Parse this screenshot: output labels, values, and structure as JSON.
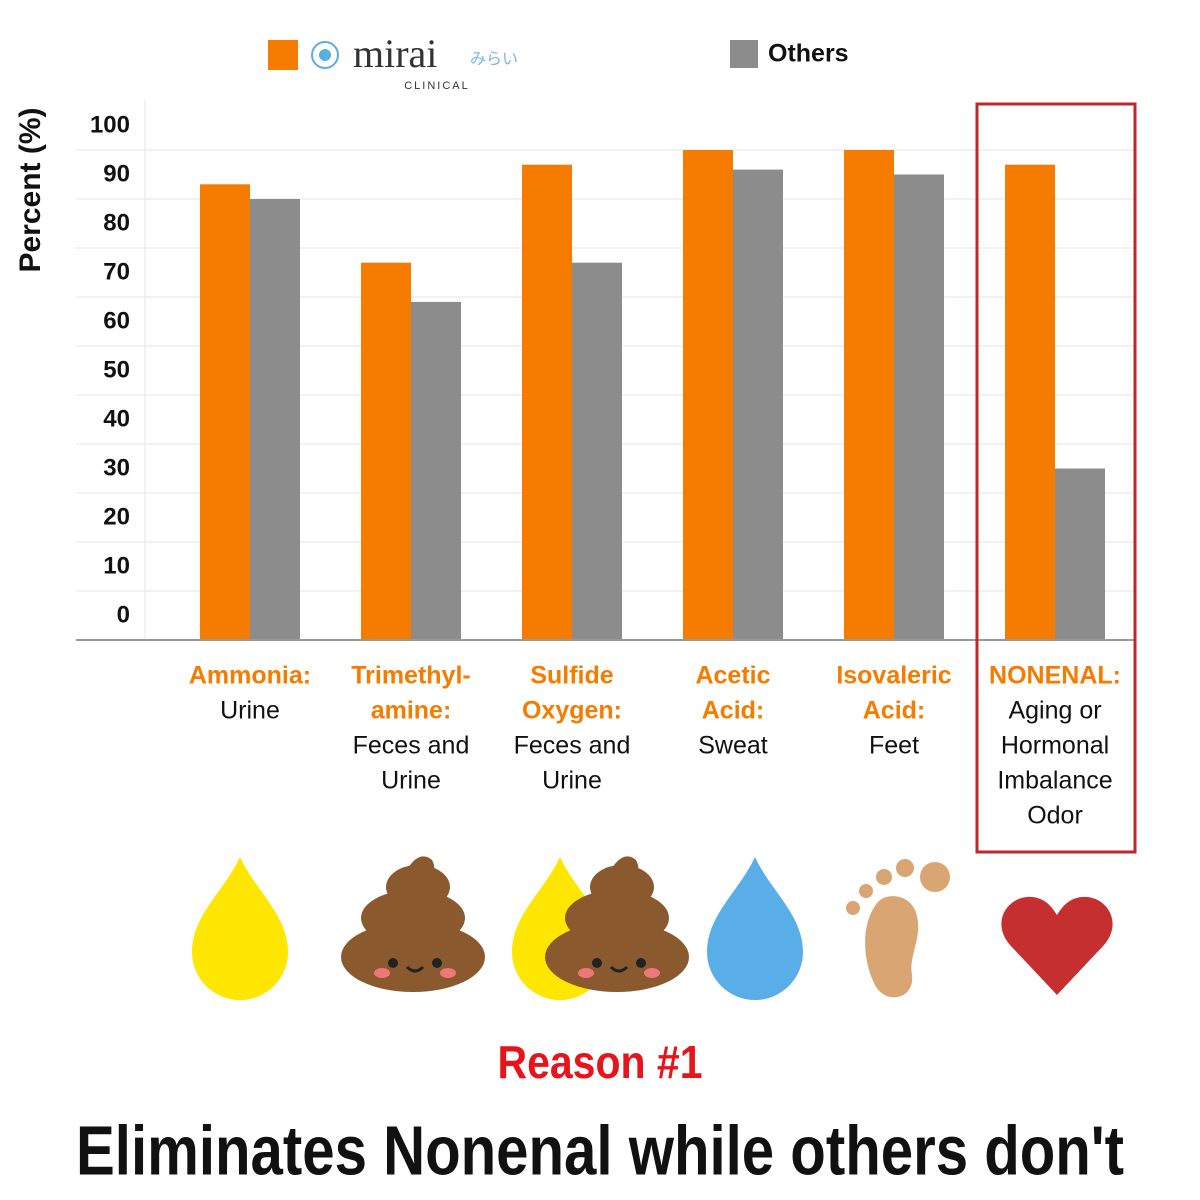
{
  "chart_data": {
    "type": "bar",
    "legend_logo": {
      "kana": "みらい",
      "subtitle": "CLINICAL"
    },
    "y_label": "Percent (%)",
    "category_labels": [
      {
        "compound": [
          "Ammonia:"
        ],
        "source": [
          "Urine"
        ]
      },
      {
        "compound": [
          "Trimethyl-",
          "amine:"
        ],
        "source": [
          "Feces and",
          "Urine"
        ]
      },
      {
        "compound": [
          "Sulfide",
          "Oxygen:"
        ],
        "source": [
          "Feces and",
          "Urine"
        ]
      },
      {
        "compound": [
          "Acetic",
          "Acid:"
        ],
        "source": [
          "Sweat"
        ]
      },
      {
        "compound": [
          "Isovaleric",
          "Acid:"
        ],
        "source": [
          "Feet"
        ]
      },
      {
        "compound": [
          "NONENAL:"
        ],
        "source": [
          "Aging or",
          "Hormonal",
          "Imbalance",
          "Odor"
        ]
      }
    ],
    "series": [
      {
        "name": "mirai",
        "color": "#f57c00",
        "values": [
          93,
          77,
          97,
          100,
          100,
          97
        ]
      },
      {
        "name": "Others",
        "color": "#8c8c8c",
        "values": [
          90,
          69,
          77,
          96,
          95,
          35
        ]
      }
    ],
    "ylim": [
      0,
      100
    ],
    "yticks": [
      0,
      10,
      20,
      30,
      40,
      50,
      60,
      70,
      80,
      90,
      100
    ],
    "grid": true,
    "annotations": {
      "subtitle": "Reason #1",
      "headline": "Eliminates Nonenal while others don't"
    }
  }
}
